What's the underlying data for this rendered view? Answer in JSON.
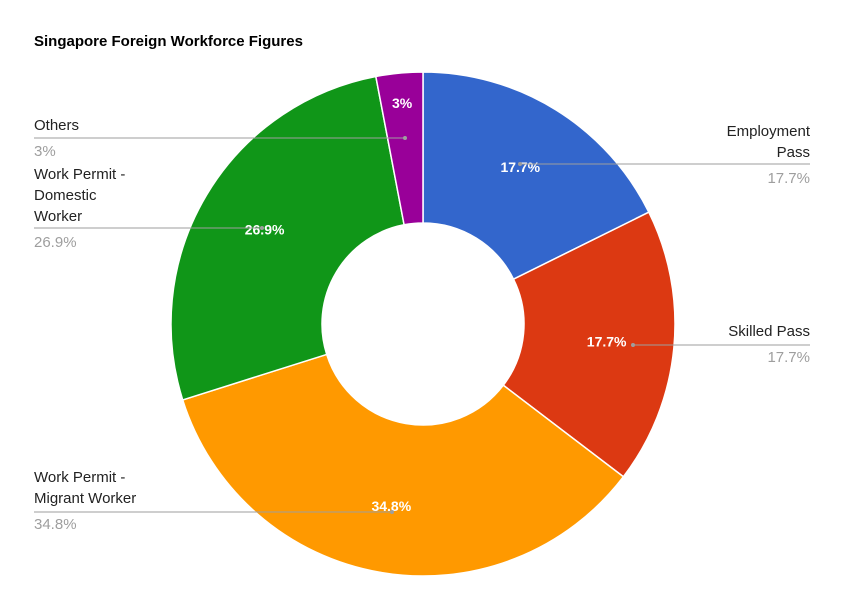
{
  "chart_data": {
    "type": "pie",
    "donut": true,
    "title": "Singapore Foreign Workforce Figures",
    "legend": "callout labels beside slices",
    "slices": [
      {
        "name": "Employment Pass",
        "value": 17.7,
        "label": "17.7%",
        "color": "#3366cc",
        "name_lines": [
          "Employment",
          "Pass"
        ]
      },
      {
        "name": "Skilled Pass",
        "value": 17.7,
        "label": "17.7%",
        "color": "#dc3912",
        "name_lines": [
          "Skilled Pass"
        ]
      },
      {
        "name": "Work Permit - Migrant Worker",
        "value": 34.8,
        "label": "34.8%",
        "color": "#ff9900",
        "name_lines": [
          "Work Permit -",
          "Migrant Worker"
        ]
      },
      {
        "name": "Work Permit - Domestic Worker",
        "value": 26.9,
        "label": "26.9%",
        "color": "#109618",
        "name_lines": [
          "Work Permit -",
          "Domestic",
          "Worker"
        ]
      },
      {
        "name": "Others",
        "value": 3,
        "label": "3%",
        "color": "#990099",
        "name_lines": [
          "Others"
        ]
      }
    ]
  }
}
